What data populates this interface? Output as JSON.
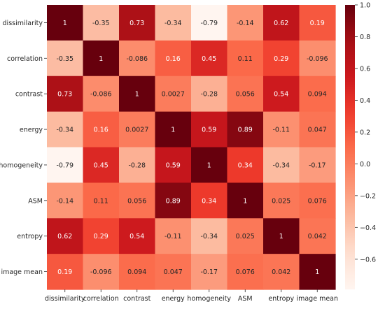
{
  "chart_data": {
    "type": "heatmap",
    "title": "",
    "variables": [
      "dissimilarity",
      "correlation",
      "contrast",
      "energy",
      "homogeneity",
      "ASM",
      "entropy",
      "image mean"
    ],
    "matrix": [
      [
        1,
        -0.35,
        0.73,
        -0.34,
        -0.79,
        -0.14,
        0.62,
        0.19
      ],
      [
        -0.35,
        1,
        -0.086,
        0.16,
        0.45,
        0.11,
        0.29,
        -0.096
      ],
      [
        0.73,
        -0.086,
        1,
        0.0027,
        -0.28,
        0.056,
        0.54,
        0.094
      ],
      [
        -0.34,
        0.16,
        0.0027,
        1,
        0.59,
        0.89,
        -0.11,
        0.047
      ],
      [
        -0.79,
        0.45,
        -0.28,
        0.59,
        1,
        0.34,
        -0.34,
        -0.17
      ],
      [
        -0.14,
        0.11,
        0.056,
        0.89,
        0.34,
        1,
        0.025,
        0.076
      ],
      [
        0.62,
        0.29,
        0.54,
        -0.11,
        -0.34,
        0.025,
        1,
        0.042
      ],
      [
        0.19,
        -0.096,
        0.094,
        0.047,
        -0.17,
        0.076,
        0.042,
        1
      ]
    ],
    "labels": [
      [
        "1",
        "-0.35",
        "0.73",
        "-0.34",
        "-0.79",
        "-0.14",
        "0.62",
        "0.19"
      ],
      [
        "-0.35",
        "1",
        "-0.086",
        "0.16",
        "0.45",
        "0.11",
        "0.29",
        "-0.096"
      ],
      [
        "0.73",
        "-0.086",
        "1",
        "0.0027",
        "-0.28",
        "0.056",
        "0.54",
        "0.094"
      ],
      [
        "-0.34",
        "0.16",
        "0.0027",
        "1",
        "0.59",
        "0.89",
        "-0.11",
        "0.047"
      ],
      [
        "-0.79",
        "0.45",
        "-0.28",
        "0.59",
        "1",
        "0.34",
        "-0.34",
        "-0.17"
      ],
      [
        "-0.14",
        "0.11",
        "0.056",
        "0.89",
        "0.34",
        "1",
        "0.025",
        "0.076"
      ],
      [
        "0.62",
        "0.29",
        "0.54",
        "-0.11",
        "-0.34",
        "0.025",
        "1",
        "0.042"
      ],
      [
        "0.19",
        "-0.096",
        "0.094",
        "0.047",
        "-0.17",
        "0.076",
        "0.042",
        "1"
      ]
    ],
    "colormap": "Reds",
    "vmin": -0.79,
    "vmax": 1,
    "colorbar_ticks": [
      1.0,
      0.8,
      0.6,
      0.4,
      0.2,
      0.0,
      -0.2,
      -0.4,
      -0.6
    ],
    "colorbar_tick_labels": [
      "1.0",
      "0.8",
      "0.6",
      "0.4",
      "0.2",
      "0.0",
      "−0.2",
      "−0.4",
      "−0.6"
    ],
    "colorbar_placement": "right",
    "grid": false
  }
}
